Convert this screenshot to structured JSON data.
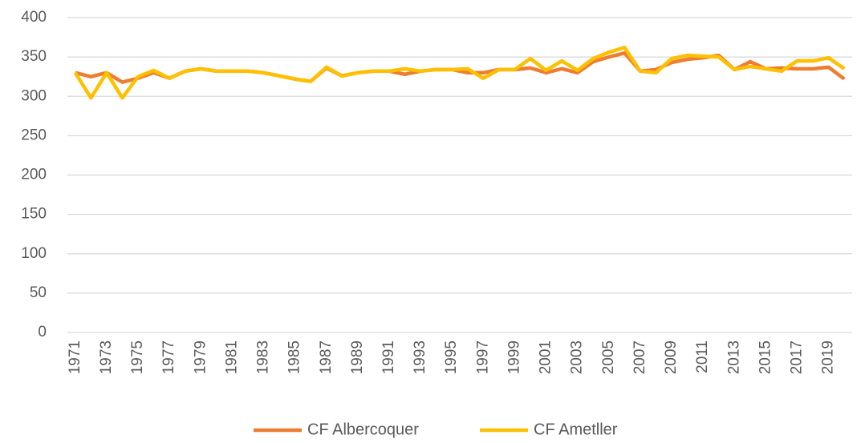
{
  "chart_data": {
    "type": "line",
    "categories": [
      "1971",
      null,
      "1973",
      null,
      "1975",
      null,
      "1977",
      null,
      "1979",
      null,
      "1981",
      null,
      "1983",
      null,
      "1985",
      null,
      "1987",
      null,
      "1989",
      null,
      "1991",
      null,
      "1993",
      null,
      "1995",
      null,
      "1997",
      null,
      "1999",
      null,
      "2001",
      null,
      "2003",
      null,
      "2005",
      null,
      "2007",
      null,
      "2009",
      null,
      "2011",
      null,
      "2013",
      null,
      "2015",
      null,
      "2017",
      null,
      "2019",
      null
    ],
    "series": [
      {
        "name": "CF Albercoquer",
        "color": "#ed7d31",
        "values": [
          330,
          325,
          330,
          318,
          323,
          330,
          323,
          332,
          335,
          332,
          332,
          332,
          330,
          326,
          322,
          319,
          336,
          326,
          330,
          332,
          332,
          328,
          332,
          334,
          334,
          330,
          330,
          334,
          334,
          336,
          330,
          335,
          330,
          344,
          350,
          355,
          332,
          334,
          343,
          347,
          349,
          352,
          334,
          344,
          335,
          336,
          335,
          335,
          337,
          322
        ]
      },
      {
        "name": "CF Ametller",
        "color": "#ffc000",
        "values": [
          330,
          298,
          330,
          298,
          325,
          333,
          323,
          332,
          335,
          332,
          332,
          332,
          330,
          326,
          322,
          319,
          337,
          326,
          330,
          332,
          332,
          335,
          332,
          334,
          334,
          335,
          323,
          334,
          334,
          348,
          333,
          345,
          333,
          348,
          356,
          362,
          332,
          330,
          348,
          352,
          351,
          350,
          334,
          338,
          335,
          332,
          345,
          345,
          349,
          335
        ]
      }
    ],
    "ylim": [
      0,
      400
    ],
    "yticks": [
      0,
      50,
      100,
      150,
      200,
      250,
      300,
      350,
      400
    ],
    "grid": true,
    "legend": "bottom"
  }
}
